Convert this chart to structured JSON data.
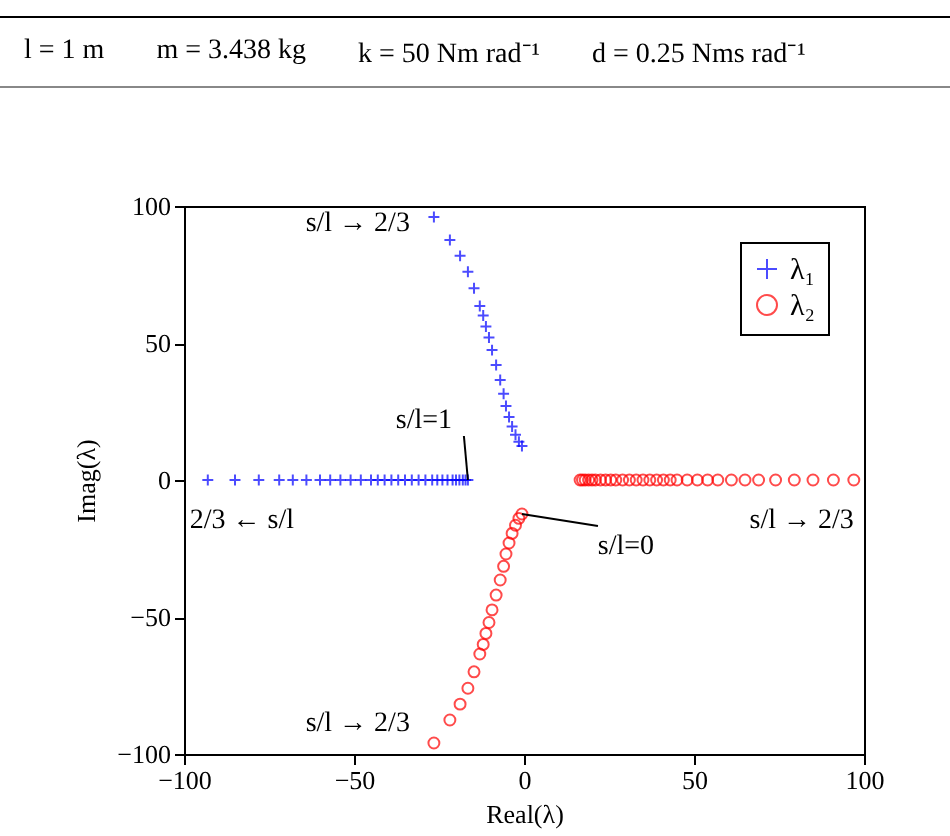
{
  "chart_data": {
    "type": "scatter",
    "xlabel": "Real(λ)",
    "ylabel": "Imag(λ)",
    "xlim": [
      -100,
      100
    ],
    "ylim": [
      -100,
      100
    ],
    "xticks": [
      -100,
      -50,
      0,
      50,
      100
    ],
    "yticks": [
      -100,
      -50,
      0,
      50,
      100
    ],
    "legend": "top right",
    "grid": false,
    "annotations": [
      "l = 1 m",
      "m = 3.438 kg",
      "k = 50 Nm rad⁻¹",
      "d = 0.25 Nms rad⁻¹",
      {
        "text": "s/l → 2/3",
        "x": -26.5,
        "y": 96
      },
      {
        "text": "2/3 ← s/l",
        "x": -93,
        "y": 0
      },
      {
        "text": "s/l → 2/3",
        "x": 97,
        "y": 0
      },
      {
        "text": "s/l → 2/3",
        "x": -26.5,
        "y": -96
      },
      {
        "text": "s/l=1",
        "x": -16.5,
        "y": 0
      },
      {
        "text": "s/l=0",
        "x": -0.6,
        "y": -12.4
      }
    ],
    "series": [
      {
        "name": "λ₁",
        "color": "#0000ff",
        "marker": "cross",
        "x": [
          -93,
          -85,
          -78,
          -72,
          -68,
          -64,
          -60,
          -57,
          -54,
          -51,
          -48,
          -45,
          -43,
          -41,
          -39,
          -37,
          -35,
          -33,
          -31,
          -29,
          -27,
          -25.5,
          -24,
          -22.5,
          -21,
          -20,
          -19,
          -18,
          -17.2,
          -16.5,
          -26.5,
          -21.8,
          -18.8,
          -16.5,
          -14.7,
          -13,
          -12,
          -11.2,
          -10.3,
          -9.4,
          -8.2,
          -7,
          -6,
          -5.3,
          -4.4,
          -3.5,
          -2.5,
          -1.5,
          -0.6
        ],
        "values": [
          0,
          0,
          0,
          0,
          0,
          0,
          0,
          0,
          0,
          0,
          0,
          0,
          0,
          0,
          0,
          0,
          0,
          0,
          0,
          0,
          0,
          0,
          0,
          0,
          0,
          0,
          0,
          0,
          0,
          0,
          96,
          87.6,
          81.8,
          76,
          70,
          63.5,
          60,
          56,
          52,
          47.4,
          42,
          36.5,
          31.5,
          27,
          23,
          19.5,
          16.5,
          14,
          12.4
        ]
      },
      {
        "name": "λ₂",
        "color": "#ff0000",
        "marker": "circle",
        "x": [
          97,
          91,
          85,
          79.5,
          74,
          69,
          65,
          61,
          57,
          54,
          51,
          48,
          45,
          43,
          41,
          39,
          37,
          35,
          33,
          31,
          29,
          27,
          25.5,
          24,
          22.5,
          21,
          20,
          19,
          18,
          17.2,
          16.5,
          -26.5,
          -21.8,
          -18.8,
          -16.5,
          -14.7,
          -13,
          -12,
          -11.2,
          -10.3,
          -9.4,
          -8.2,
          -7,
          -6,
          -5.3,
          -4.4,
          -3.5,
          -2.5,
          -1.5,
          -0.6
        ],
        "values": [
          0,
          0,
          0,
          0,
          0,
          0,
          0,
          0,
          0,
          0,
          0,
          0,
          0,
          0,
          0,
          0,
          0,
          0,
          0,
          0,
          0,
          0,
          0,
          0,
          0,
          0,
          0,
          0,
          0,
          0,
          0,
          -96,
          -87.6,
          -81.8,
          -76,
          -70,
          -63.5,
          -60,
          -56,
          -52,
          -47.4,
          -42,
          -36.5,
          -31.5,
          -27,
          -23,
          -19.5,
          -16.5,
          -14,
          -12.4
        ]
      }
    ]
  }
}
